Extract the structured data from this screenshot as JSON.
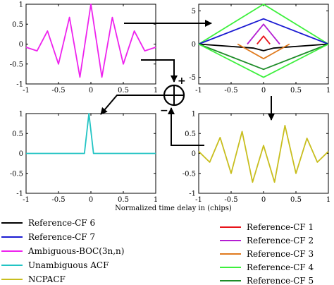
{
  "colors": {
    "reference_cf_1": "#e8141a",
    "reference_cf_2": "#b41ed2",
    "reference_cf_3": "#e07a1e",
    "reference_cf_4": "#3cf03c",
    "reference_cf_5": "#1e8c28",
    "reference_cf_6": "#000000",
    "reference_cf_7": "#1a1ad2",
    "ambiguous": "#ee22ee",
    "unambiguous": "#22c4c4",
    "ncpacf": "#c8be1e"
  },
  "xlabel": "Normalized time delay in (chips)",
  "combiner": {
    "plus": "+",
    "minus": "−",
    "icon": "circle-plus-icon"
  },
  "legend_left": [
    {
      "label": "Reference-CF 6",
      "color": "#000000"
    },
    {
      "label": "Reference-CF 7",
      "color": "#1a1ad2"
    },
    {
      "label": "Ambiguous-BOC(3n,n)",
      "color": "#ee22ee"
    },
    {
      "label": "Unambiguous ACF",
      "color": "#22c4c4"
    },
    {
      "label": "NCPACF",
      "color": "#c8be1e"
    }
  ],
  "legend_right": [
    {
      "label": "Reference-CF 1",
      "color": "#e8141a"
    },
    {
      "label": "Reference-CF 2",
      "color": "#b41ed2"
    },
    {
      "label": "Reference-CF 3",
      "color": "#e07a1e"
    },
    {
      "label": "Reference-CF 4",
      "color": "#3cf03c"
    },
    {
      "label": "Reference-CF 5",
      "color": "#1e8c28"
    }
  ],
  "chart_data": [
    {
      "type": "line",
      "name": "top-left",
      "xlim": [
        -1,
        1
      ],
      "ylim": [
        -1,
        1
      ],
      "xticks": [
        "-1",
        "-0.5",
        "0",
        "0.5",
        "1"
      ],
      "xtick_values": [
        -1,
        -0.5,
        0,
        0.5,
        1
      ],
      "yticks": [
        "1",
        "0.5",
        "0",
        "-0.5",
        "-1"
      ],
      "ytick_values": [
        1,
        0.5,
        0,
        -0.5,
        -1
      ],
      "series": [
        {
          "color": "#ee22ee",
          "x": [
            -1,
            -0.83,
            -0.67,
            -0.5,
            -0.33,
            -0.17,
            0,
            0.17,
            0.33,
            0.5,
            0.67,
            0.83,
            1
          ],
          "y": [
            -0.08,
            -0.17,
            0.33,
            -0.5,
            0.67,
            -0.83,
            1,
            -0.83,
            0.67,
            -0.5,
            0.33,
            -0.17,
            -0.08
          ]
        }
      ]
    },
    {
      "type": "line",
      "name": "top-right",
      "xlim": [
        -1,
        1
      ],
      "ylim": [
        -6,
        6
      ],
      "xticks": [
        "-1",
        "-0.5",
        "0",
        "0.5",
        "1"
      ],
      "xtick_values": [
        -1,
        -0.5,
        0,
        0.5,
        1
      ],
      "yticks": [
        "5",
        "0",
        "-5"
      ],
      "ytick_values": [
        5,
        0,
        -5
      ],
      "series": [
        {
          "color": "#3cf03c",
          "x": [
            -1,
            0,
            1
          ],
          "y": [
            0,
            6,
            0
          ]
        },
        {
          "color": "#1a1ad2",
          "x": [
            -1,
            0,
            1
          ],
          "y": [
            0,
            3.8,
            0
          ]
        },
        {
          "color": "#b41ed2",
          "x": [
            -0.25,
            0,
            0.25
          ],
          "y": [
            0,
            3,
            0
          ]
        },
        {
          "color": "#e8141a",
          "x": [
            -0.1,
            0,
            0.1
          ],
          "y": [
            0,
            1.2,
            0
          ]
        },
        {
          "color": "#000000",
          "x": [
            -1,
            -0.15,
            0,
            0.15,
            1
          ],
          "y": [
            0,
            -0.6,
            -1,
            -0.6,
            0
          ]
        },
        {
          "color": "#e07a1e",
          "x": [
            -0.4,
            0,
            0.4
          ],
          "y": [
            0,
            -2.2,
            0
          ]
        },
        {
          "color": "#1e8c28",
          "x": [
            -1,
            0,
            1
          ],
          "y": [
            0,
            -3.8,
            0
          ]
        },
        {
          "color": "#3cf03c",
          "x": [
            -1,
            0,
            1
          ],
          "y": [
            0,
            -5,
            0
          ]
        }
      ]
    },
    {
      "type": "line",
      "name": "bottom-left",
      "xlim": [
        -1,
        1
      ],
      "ylim": [
        -1,
        1
      ],
      "xticks": [
        "-1",
        "-0.5",
        "0",
        "0.5",
        "1"
      ],
      "xtick_values": [
        -1,
        -0.5,
        0,
        0.5,
        1
      ],
      "yticks": [
        "1",
        "0.5",
        "0",
        "-0.5",
        "-1"
      ],
      "ytick_values": [
        1,
        0.5,
        0,
        -0.5,
        -1
      ],
      "series": [
        {
          "color": "#22c4c4",
          "x": [
            -1,
            -0.1,
            -0.03,
            0.04,
            1
          ],
          "y": [
            0,
            0,
            1,
            0,
            0
          ]
        }
      ]
    },
    {
      "type": "line",
      "name": "bottom-right",
      "xlim": [
        -1,
        1
      ],
      "ylim": [
        -1,
        1
      ],
      "xticks": [
        "-1",
        "-0.5",
        "0",
        "0.5",
        "1"
      ],
      "xtick_values": [
        -1,
        -0.5,
        0,
        0.5,
        1
      ],
      "yticks": [
        "1",
        "0.5",
        "0",
        "-0.5",
        "-1"
      ],
      "ytick_values": [
        1,
        0.5,
        0,
        -0.5,
        -1
      ],
      "series": [
        {
          "color": "#c8be1e",
          "x": [
            -1,
            -0.83,
            -0.67,
            -0.5,
            -0.33,
            -0.17,
            0,
            0.17,
            0.33,
            0.5,
            0.67,
            0.83,
            1
          ],
          "y": [
            0.05,
            -0.22,
            0.4,
            -0.5,
            0.55,
            -0.72,
            0.2,
            -0.72,
            0.7,
            -0.5,
            0.38,
            -0.22,
            0.05
          ]
        }
      ]
    }
  ]
}
